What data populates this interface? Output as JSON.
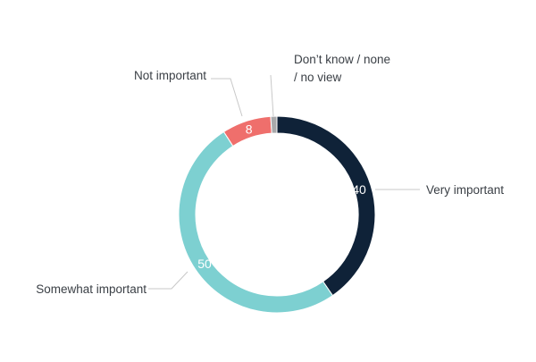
{
  "chart_data": {
    "type": "pie",
    "variant": "donut",
    "title": "",
    "slices": [
      {
        "label": "Very important",
        "value": 40,
        "color": "#0f2238",
        "value_label": "40"
      },
      {
        "label": "Somewhat important",
        "value": 50,
        "color": "#7dd0d1",
        "value_label": "50"
      },
      {
        "label": "Not important",
        "value": 8,
        "color": "#ef6f6c",
        "value_label": "8"
      },
      {
        "label_lines": [
          "Don’t know / none",
          "/ no view"
        ],
        "label": "Don’t know / none / no view",
        "value": 1,
        "color": "#a8a9ab",
        "value_label": ""
      }
    ]
  }
}
